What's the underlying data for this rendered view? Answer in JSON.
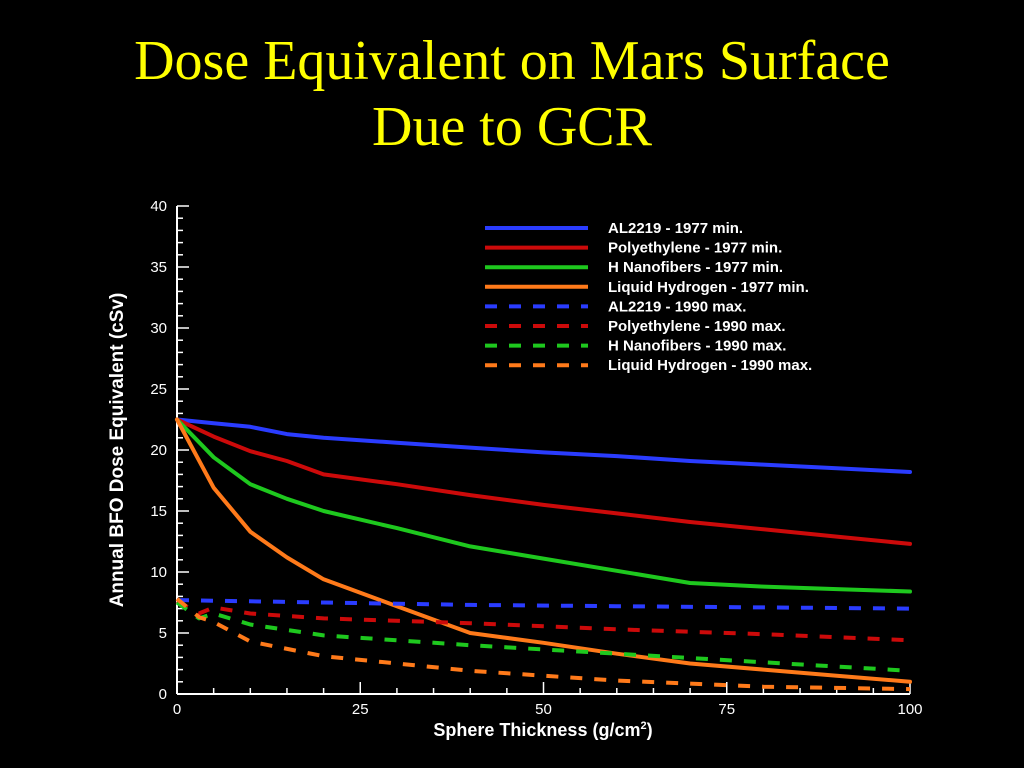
{
  "slide": {
    "title_line1": "Dose Equivalent on Mars Surface",
    "title_line2": "Due to GCR"
  },
  "chart_data": {
    "type": "line",
    "xlabel": "Sphere Thickness (g/cm",
    "xlabel_sup": "2",
    "xlabel_close": ")",
    "ylabel": "Annual BFO Dose Equivalent (cSv)",
    "xlim": [
      0,
      100
    ],
    "ylim": [
      0,
      40
    ],
    "x_ticks": [
      0,
      25,
      50,
      75,
      100
    ],
    "y_ticks": [
      0,
      5,
      10,
      15,
      20,
      25,
      30,
      35,
      40
    ],
    "grid": false,
    "legend_position": "top-right",
    "background": "#000000",
    "axis_color": "#ffffff",
    "series": [
      {
        "name": "AL2219 - 1977 min.",
        "color": "#2a3cff",
        "dash": "solid",
        "x": [
          0,
          5,
          10,
          15,
          20,
          30,
          40,
          50,
          60,
          70,
          80,
          90,
          100
        ],
        "y": [
          22.5,
          22.2,
          21.9,
          21.3,
          21.0,
          20.6,
          20.2,
          19.8,
          19.5,
          19.1,
          18.8,
          18.5,
          18.2
        ]
      },
      {
        "name": "Polyethylene - 1977 min.",
        "color": "#cc0a0a",
        "dash": "solid",
        "x": [
          0,
          5,
          10,
          15,
          20,
          30,
          40,
          50,
          60,
          70,
          80,
          90,
          100
        ],
        "y": [
          22.5,
          21.1,
          19.9,
          19.1,
          18.0,
          17.2,
          16.3,
          15.5,
          14.8,
          14.1,
          13.5,
          12.9,
          12.3
        ]
      },
      {
        "name": "H Nanofibers - 1977 min.",
        "color": "#1ec81e",
        "dash": "solid",
        "x": [
          0,
          5,
          10,
          15,
          20,
          30,
          40,
          50,
          60,
          70,
          80,
          90,
          100
        ],
        "y": [
          22.5,
          19.4,
          17.2,
          16.0,
          15.0,
          13.6,
          12.1,
          11.1,
          10.1,
          9.1,
          8.8,
          8.6,
          8.4
        ]
      },
      {
        "name": "Liquid Hydrogen - 1977 min.",
        "color": "#ff7a1a",
        "dash": "solid",
        "x": [
          0,
          5,
          10,
          15,
          20,
          30,
          40,
          50,
          60,
          70,
          80,
          90,
          100
        ],
        "y": [
          22.5,
          16.9,
          13.3,
          11.2,
          9.4,
          7.2,
          5.0,
          4.2,
          3.3,
          2.5,
          2.0,
          1.5,
          1.0
        ]
      },
      {
        "name": "AL2219 - 1990 max.",
        "color": "#2a3cff",
        "dash": "dashed",
        "x": [
          0,
          10,
          20,
          40,
          60,
          80,
          100
        ],
        "y": [
          7.7,
          7.6,
          7.5,
          7.3,
          7.2,
          7.1,
          7.0
        ]
      },
      {
        "name": "Polyethylene - 1990 max.",
        "color": "#cc0a0a",
        "dash": "dashed",
        "x": [
          0,
          3,
          5,
          10,
          20,
          40,
          60,
          80,
          100
        ],
        "y": [
          7.6,
          6.6,
          7.1,
          6.6,
          6.2,
          5.8,
          5.3,
          4.9,
          4.4
        ]
      },
      {
        "name": "H Nanofibers - 1990 max.",
        "color": "#1ec81e",
        "dash": "dashed",
        "x": [
          0,
          3,
          5,
          10,
          20,
          40,
          60,
          80,
          100
        ],
        "y": [
          7.5,
          6.2,
          6.6,
          5.7,
          4.8,
          4.0,
          3.3,
          2.6,
          1.9
        ]
      },
      {
        "name": "Liquid Hydrogen - 1990 max.",
        "color": "#ff7a1a",
        "dash": "dashed",
        "x": [
          0,
          3,
          5,
          10,
          20,
          40,
          60,
          80,
          100
        ],
        "y": [
          7.8,
          6.3,
          5.9,
          4.3,
          3.1,
          1.9,
          1.1,
          0.6,
          0.4
        ]
      }
    ]
  }
}
